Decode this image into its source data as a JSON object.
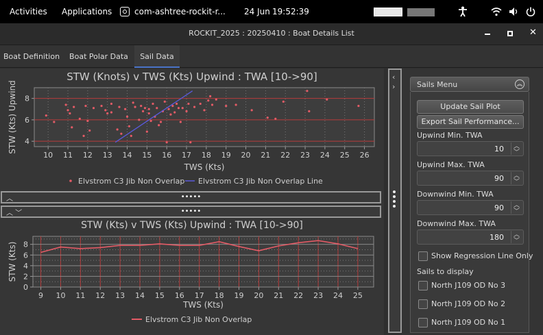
{
  "topbar": {
    "activities": "Activities",
    "applications": "Applications",
    "app_name": "com-ashtree-rockit-r...",
    "date": "24 Jun",
    "time": "19:52:39"
  },
  "window": {
    "title": "ROCKIT_2025 : 20250410 : Boat Details List"
  },
  "tabs": [
    {
      "label": "Boat Definition"
    },
    {
      "label": "Boat Polar Data"
    },
    {
      "label": "Sail Data"
    }
  ],
  "upper_split": {
    "handle": "•••••"
  },
  "lower_split": {
    "handle": "•••••"
  },
  "sails_menu": {
    "title": "Sails Menu",
    "update_button": "Update Sail Plot",
    "export_button": "Export Sail Performance...",
    "upwind_min_label": "Upwind Min. TWA",
    "upwind_min_value": "10",
    "upwind_max_label": "Upwind Max. TWA",
    "upwind_max_value": "90",
    "downwind_min_label": "Downwind Min. TWA",
    "downwind_min_value": "90",
    "downwind_max_label": "Downwind Max. TWA",
    "downwind_max_value": "180",
    "regression_label": "Show Regression Line Only",
    "sails_label": "Sails to display",
    "sails": [
      {
        "label": "North J109 OD No 3"
      },
      {
        "label": "North J109 OD No 2"
      },
      {
        "label": "North J109 OD No 1"
      }
    ]
  },
  "chart_data": [
    {
      "type": "scatter",
      "title": "STW (Knots) v TWS (Kts) Upwind  : TWA [10->90]",
      "xlabel": "TWS (Kts)",
      "ylabel": "STW (Kts) Upwind",
      "xlim": [
        9.3,
        26.5
      ],
      "ylim": [
        3.5,
        9.0
      ],
      "x_ticks": [
        "10",
        "11",
        "12",
        "13",
        "14",
        "15",
        "16",
        "17",
        "18",
        "19",
        "20",
        "21",
        "22",
        "23",
        "24",
        "25",
        "26"
      ],
      "y_ticks": [
        "4",
        "6",
        "8"
      ],
      "grid": true,
      "legend_position": "bottom",
      "series": [
        {
          "name": "Elvstrom C3 Jib Non Overlap",
          "color": "#e35b66",
          "points": [
            [
              9.9,
              6.4
            ],
            [
              10.3,
              5.8
            ],
            [
              10.9,
              7.4
            ],
            [
              11.0,
              6.9
            ],
            [
              11.1,
              6.6
            ],
            [
              11.2,
              5.3
            ],
            [
              11.3,
              7.2
            ],
            [
              11.6,
              6.1
            ],
            [
              11.8,
              4.5
            ],
            [
              11.9,
              7.3
            ],
            [
              12.0,
              5.9
            ],
            [
              12.1,
              5.0
            ],
            [
              12.3,
              7.1
            ],
            [
              12.7,
              7.3
            ],
            [
              12.9,
              6.9
            ],
            [
              13.0,
              6.6
            ],
            [
              13.2,
              7.5
            ],
            [
              13.2,
              6.7
            ],
            [
              13.5,
              5.1
            ],
            [
              13.6,
              7.2
            ],
            [
              13.7,
              4.7
            ],
            [
              13.9,
              7.0
            ],
            [
              14.0,
              6.3
            ],
            [
              14.1,
              5.4
            ],
            [
              14.2,
              4.5
            ],
            [
              14.3,
              7.6
            ],
            [
              14.4,
              7.2
            ],
            [
              14.6,
              6.0
            ],
            [
              14.7,
              7.3
            ],
            [
              14.8,
              6.8
            ],
            [
              14.9,
              7.1
            ],
            [
              15.0,
              4.9
            ],
            [
              15.1,
              6.6
            ],
            [
              15.1,
              7.0
            ],
            [
              15.2,
              5.9
            ],
            [
              15.3,
              7.5
            ],
            [
              15.4,
              6.3
            ],
            [
              15.5,
              7.1
            ],
            [
              15.6,
              5.5
            ],
            [
              15.7,
              5.8
            ],
            [
              15.8,
              6.8
            ],
            [
              15.9,
              7.7
            ],
            [
              16.0,
              3.9
            ],
            [
              16.1,
              7.0
            ],
            [
              16.2,
              6.5
            ],
            [
              16.3,
              7.3
            ],
            [
              16.4,
              6.7
            ],
            [
              16.5,
              7.5
            ],
            [
              16.6,
              7.1
            ],
            [
              16.7,
              5.8
            ],
            [
              16.8,
              7.1
            ],
            [
              17.0,
              6.8
            ],
            [
              17.1,
              7.5
            ],
            [
              17.2,
              3.9
            ],
            [
              17.4,
              7.2
            ],
            [
              17.7,
              7.5
            ],
            [
              17.9,
              6.9
            ],
            [
              18.1,
              7.8
            ],
            [
              18.2,
              8.2
            ],
            [
              18.3,
              7.4
            ],
            [
              18.5,
              7.9
            ],
            [
              19.0,
              7.3
            ],
            [
              19.5,
              7.4
            ],
            [
              20.3,
              6.9
            ],
            [
              21.1,
              6.2
            ],
            [
              21.5,
              6.1
            ],
            [
              21.9,
              7.7
            ],
            [
              23.1,
              8.7
            ],
            [
              23.2,
              6.8
            ],
            [
              24.1,
              7.9
            ],
            [
              25.7,
              7.3
            ]
          ]
        },
        {
          "name": "Elvstrom C3 Jib Non Overlap Line",
          "color": "#5a5adc",
          "points": [
            [
              13.4,
              3.9
            ],
            [
              17.3,
              8.7
            ]
          ]
        }
      ]
    },
    {
      "type": "line",
      "title": "STW (Kts) v TWS (Kts) Upwind : TWA [10->90]",
      "xlabel": "TWS (Kts)",
      "ylabel": "STW (Kts)",
      "xlim": [
        8.6,
        25.8
      ],
      "ylim": [
        0,
        9.5
      ],
      "x_ticks": [
        "9",
        "10",
        "11",
        "12",
        "13",
        "14",
        "15",
        "16",
        "17",
        "18",
        "19",
        "20",
        "21",
        "22",
        "23",
        "24",
        "25"
      ],
      "y_ticks": [
        "0",
        "2",
        "4",
        "6",
        "8"
      ],
      "grid": true,
      "legend_position": "bottom",
      "series": [
        {
          "name": "Elvstrom C3 Jib Non Overlap",
          "color": "#e35b66",
          "x": [
            9,
            10,
            11,
            12,
            13,
            14,
            15,
            16,
            17,
            18,
            19,
            20,
            21,
            22,
            23,
            24,
            25
          ],
          "values": [
            6.5,
            7.5,
            7.2,
            7.4,
            7.8,
            7.8,
            8.1,
            7.8,
            7.8,
            8.5,
            7.6,
            6.8,
            7.7,
            8.3,
            8.7,
            8.1,
            7.2
          ]
        }
      ]
    }
  ]
}
